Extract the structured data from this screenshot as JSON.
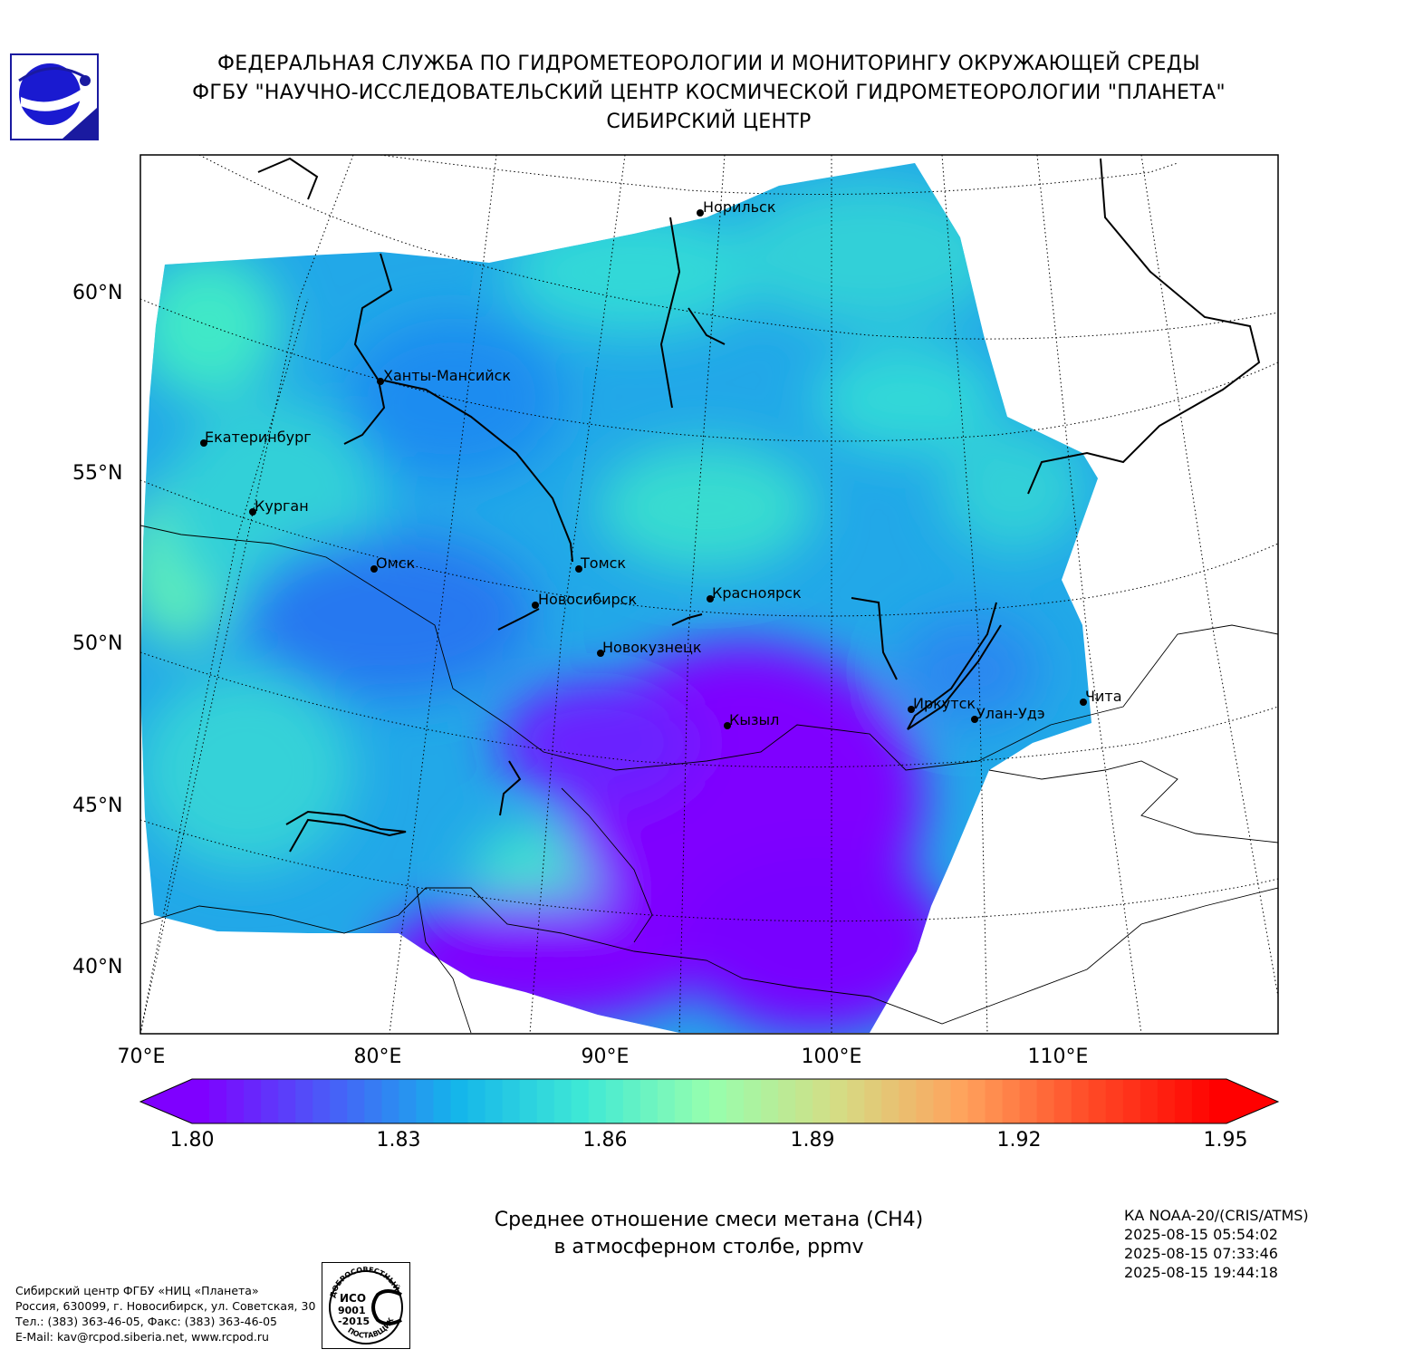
{
  "header": {
    "line1": "ФЕДЕРАЛЬНАЯ СЛУЖБА ПО ГИДРОМЕТЕОРОЛОГИИ И МОНИТОРИНГУ ОКРУЖАЮЩЕЙ СРЕДЫ",
    "line2": "ФГБУ \"НАУЧНО-ИССЛЕДОВАТЕЛЬСКИЙ ЦЕНТР КОСМИЧЕСКОЙ ГИДРОМЕТЕОРОЛОГИИ \"ПЛАНЕТА\"",
    "line3": "СИБИРСКИЙ ЦЕНТР"
  },
  "map": {
    "lat_labels": [
      "60°N",
      "55°N",
      "50°N",
      "45°N",
      "40°N"
    ],
    "lon_labels": [
      "70°E",
      "80°E",
      "90°E",
      "100°E",
      "110°E"
    ],
    "cities": [
      {
        "name": "Норильск"
      },
      {
        "name": "Ханты-Мансийск"
      },
      {
        "name": "Екатеринбург"
      },
      {
        "name": "Курган"
      },
      {
        "name": "Омск"
      },
      {
        "name": "Томск"
      },
      {
        "name": "Новосибирск"
      },
      {
        "name": "Красноярск"
      },
      {
        "name": "Новокузнецк"
      },
      {
        "name": "Кызыл"
      },
      {
        "name": "Иркутск"
      },
      {
        "name": "Улан-Удэ"
      },
      {
        "name": "Чита"
      }
    ]
  },
  "colorbar": {
    "min": 1.8,
    "max": 1.95,
    "ticks": [
      "1.80",
      "1.83",
      "1.86",
      "1.89",
      "1.92",
      "1.95"
    ],
    "colors": [
      "#7f00ff",
      "#4a5cf8",
      "#14b4eb",
      "#3ee8d6",
      "#96ffae",
      "#d4dd85",
      "#ffa25c",
      "#ff4a26",
      "#ff0000"
    ]
  },
  "caption": {
    "line1": "Среднее отношение смеси метана (CH4)",
    "line2": "в атмосферном столбе, ppmv"
  },
  "satellite": {
    "name": "КА NOAA-20/(CRIS/ATMS)",
    "times": [
      "2025-08-15 05:54:02",
      "2025-08-15 07:33:46",
      "2025-08-15 19:44:18"
    ]
  },
  "footer": {
    "org": "Сибирский центр ФГБУ «НИЦ «Планета»",
    "address": "Россия, 630099, г. Новосибирск, ул. Советская, 30",
    "phone": "Тел.: (383) 363-46-05, Факс: (383) 363-46-05",
    "email": "E-Mail: kav@rcpod.siberia.net, www.rcpod.ru"
  },
  "iso_badge": {
    "top": "ДОБРОСОВЕСТНЫЙ",
    "l1": "ИСО",
    "l2": "9001",
    "l3": "-2015",
    "bottom": "ПОСТАВЩИК"
  }
}
